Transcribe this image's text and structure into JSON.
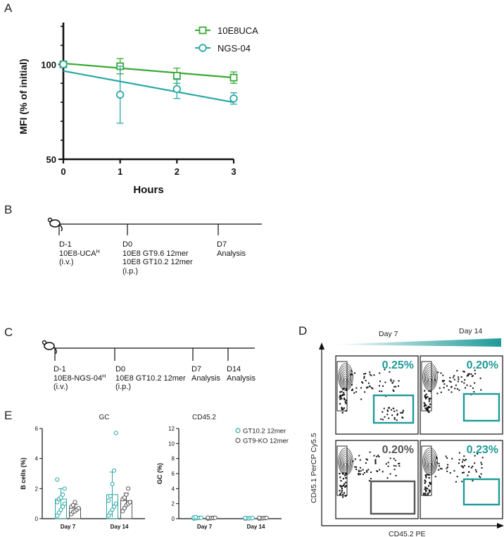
{
  "panelA": {
    "label": "A",
    "chart_data": {
      "type": "line",
      "xlabel": "Hours",
      "ylabel": "MFI (% of initial)",
      "x_ticks": [
        "0",
        "1",
        "2",
        "3"
      ],
      "y_ticks": [
        "50",
        "100"
      ],
      "ylim": [
        50,
        122
      ],
      "xlim": [
        0,
        3
      ],
      "legend_position": "top-right",
      "series": [
        {
          "name": "10E8UCA",
          "color": "#3aa935",
          "marker": "square",
          "x": [
            0,
            1,
            2,
            3
          ],
          "y": [
            100,
            99,
            94,
            93
          ],
          "err": [
            0,
            4,
            4,
            3
          ],
          "fit_start": 100.5,
          "fit_end": 93
        },
        {
          "name": "NGS-04",
          "color": "#2aa7a6",
          "marker": "circle",
          "x": [
            0,
            1,
            2,
            3
          ],
          "y": [
            100,
            84,
            87,
            82
          ],
          "err": [
            0,
            15,
            5,
            3
          ],
          "fit_start": 96.5,
          "fit_end": 80
        }
      ]
    }
  },
  "panelB": {
    "label": "B",
    "d_minus1": "D-1",
    "d_minus1_l2": "10E8-UCA",
    "d_minus1_sup": "H",
    "d_minus1_l3": "(i.v.)",
    "d0": "D0",
    "d0_l2": "10E8 GT9.6 12mer",
    "d0_l3": "10E8 GT10.2 12mer",
    "d0_l4": "(i.p.)",
    "d7": "D7",
    "d7_l2": "Analysis"
  },
  "panelC": {
    "label": "C",
    "d_minus1": "D-1",
    "d_minus1_l2": "10E8-NGS-04",
    "d_minus1_sup": "H",
    "d_minus1_l3": "(i.v.)",
    "d0": "D0",
    "d0_l2": "10E8 GT10.2 12mer",
    "d0_l3": "(i.p.)",
    "d7": "D7",
    "d7_l2": "Analysis",
    "d14": "D14",
    "d14_l2": "Analysis"
  },
  "panelD": {
    "label": "D",
    "day7": "Day 7",
    "day14": "Day 14",
    "ylabel": "CD45.1 PerCP Cy5.5",
    "xlabel": "CD45.2 PE",
    "pct_tl": "0.25%",
    "pct_tr": "0.20%",
    "pct_bl": "0.20%",
    "pct_br": "0.23%",
    "teal": "#1e9a98",
    "gray": "#555555"
  },
  "panelE": {
    "label": "E",
    "chart_data": [
      {
        "type": "bar",
        "title": "GC",
        "ylabel": "B cells (%)",
        "categories": [
          "Day 7",
          "Day 14"
        ],
        "ylim": [
          0,
          6
        ],
        "y_ticks": [
          "0",
          "2",
          "4",
          "6"
        ],
        "series": [
          {
            "name": "GT10.2 12mer",
            "color": "#2aa7a6",
            "means": [
              1.3,
              1.6
            ],
            "sd": [
              0.7,
              1.5
            ],
            "points": [
              [
                0.2,
                0.4,
                0.6,
                0.8,
                1.0,
                1.1,
                1.3,
                1.4,
                1.6,
                2.0,
                2.6
              ],
              [
                0.2,
                0.4,
                0.6,
                0.8,
                1.0,
                1.2,
                1.5,
                2.3,
                3.2,
                5.7
              ]
            ]
          },
          {
            "name": "GT9-KO 12mer",
            "color": "#555555",
            "means": [
              0.7,
              1.2
            ],
            "sd": [
              0.25,
              0.5
            ],
            "points": [
              [
                0.3,
                0.45,
                0.5,
                0.6,
                0.7,
                0.8,
                0.9,
                1.1
              ],
              [
                0.5,
                0.7,
                0.9,
                1.0,
                1.1,
                1.3,
                1.4,
                1.6,
                2.0
              ]
            ]
          }
        ]
      },
      {
        "type": "bar",
        "title": "CD45.2",
        "ylabel": "GC (%)",
        "categories": [
          "Day 7",
          "Day 14"
        ],
        "ylim": [
          0,
          12
        ],
        "y_ticks": [
          "0",
          "2",
          "4",
          "6",
          "8",
          "10",
          "12"
        ],
        "legend_position": "top-right",
        "series": [
          {
            "name": "GT10.2 12mer",
            "color": "#2aa7a6",
            "means": [
              0.1,
              0.05
            ],
            "sd": [
              0.05,
              0.03
            ],
            "points": [
              [
                0.02,
                0.05,
                0.08,
                0.1,
                0.12,
                0.15,
                0.2
              ],
              [
                0.02,
                0.04,
                0.05,
                0.06,
                0.08,
                0.1
              ]
            ]
          },
          {
            "name": "GT9-KO 12mer",
            "color": "#555555",
            "means": [
              0.08,
              0.06
            ],
            "sd": [
              0.04,
              0.03
            ],
            "points": [
              [
                0.02,
                0.05,
                0.08,
                0.1,
                0.12,
                0.14
              ],
              [
                0.02,
                0.04,
                0.06,
                0.08,
                0.1,
                0.12
              ]
            ]
          }
        ]
      }
    ]
  }
}
